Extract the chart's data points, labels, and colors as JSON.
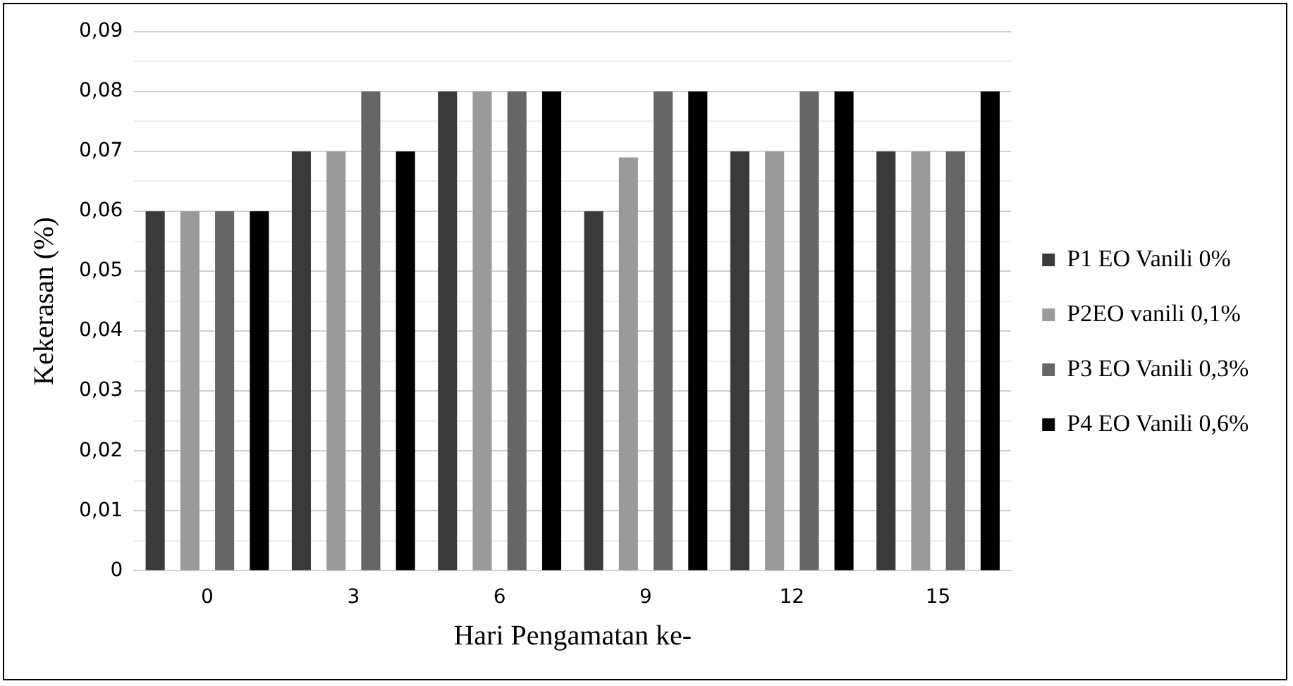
{
  "chart_data": {
    "type": "bar",
    "xlabel": "Hari Pengamatan ke-",
    "ylabel": "Kekerasan (%)",
    "categories": [
      "0",
      "3",
      "6",
      "9",
      "12",
      "15"
    ],
    "series": [
      {
        "name": "P1 EO Vanili 0%",
        "color": "#3a3a3a",
        "values": [
          0.06,
          0.07,
          0.08,
          0.06,
          0.07,
          0.07
        ]
      },
      {
        "name": "P2EO vanili 0,1%",
        "color": "#9a9a9a",
        "values": [
          0.06,
          0.07,
          0.08,
          0.069,
          0.07,
          0.07
        ]
      },
      {
        "name": "P3 EO Vanili 0,3%",
        "color": "#666666",
        "values": [
          0.06,
          0.08,
          0.08,
          0.08,
          0.08,
          0.07
        ]
      },
      {
        "name": "P4 EO Vanili 0,6%",
        "color": "#000000",
        "values": [
          0.06,
          0.07,
          0.08,
          0.08,
          0.08,
          0.08
        ]
      }
    ],
    "ylim": [
      0,
      0.09
    ],
    "yticks": [
      {
        "value": 0,
        "label": "0"
      },
      {
        "value": 0.005,
        "label": null
      },
      {
        "value": 0.01,
        "label": "0,01"
      },
      {
        "value": 0.015,
        "label": null
      },
      {
        "value": 0.02,
        "label": "0,02"
      },
      {
        "value": 0.025,
        "label": null
      },
      {
        "value": 0.03,
        "label": "0,03"
      },
      {
        "value": 0.035,
        "label": null
      },
      {
        "value": 0.04,
        "label": "0,04"
      },
      {
        "value": 0.045,
        "label": null
      },
      {
        "value": 0.05,
        "label": "0,05"
      },
      {
        "value": 0.055,
        "label": null
      },
      {
        "value": 0.06,
        "label": "0,06"
      },
      {
        "value": 0.065,
        "label": null
      },
      {
        "value": 0.07,
        "label": "0,07"
      },
      {
        "value": 0.075,
        "label": null
      },
      {
        "value": 0.08,
        "label": "0,08"
      },
      {
        "value": 0.085,
        "label": null
      },
      {
        "value": 0.09,
        "label": "0,09"
      }
    ],
    "grid": "y",
    "legend": "right"
  }
}
